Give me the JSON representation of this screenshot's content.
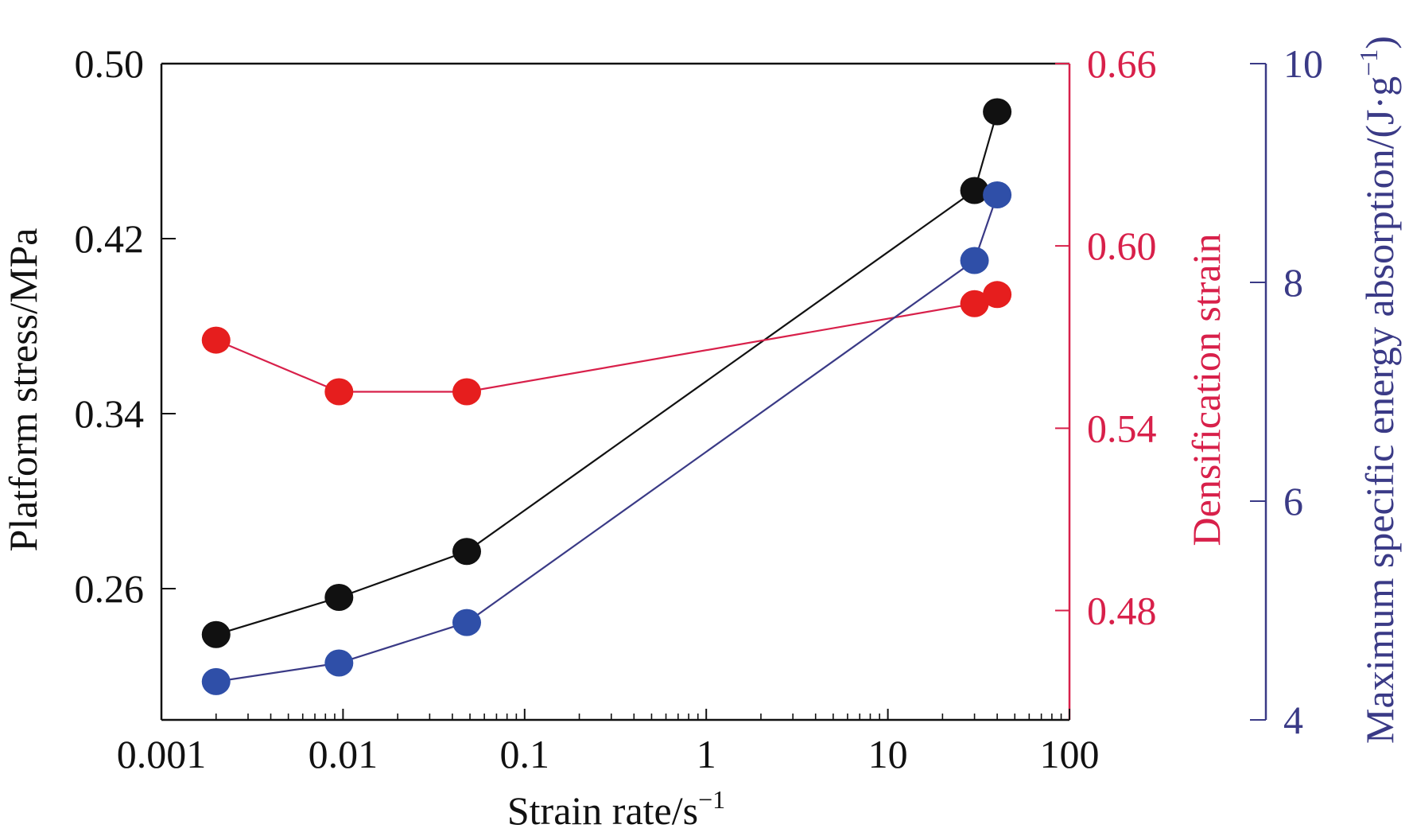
{
  "chart_data": {
    "type": "line",
    "x_scale": "log",
    "xlim": [
      0.001,
      100
    ],
    "x_ticks": [
      0.001,
      0.01,
      0.1,
      1,
      10,
      100
    ],
    "x_tick_labels": [
      "0.001",
      "0.01",
      "0.1",
      "1",
      "10",
      "100"
    ],
    "xlabel": "Strain rate/s",
    "xlabel_sup": "−1",
    "axes": {
      "left": {
        "label": "Platform stress/MPa",
        "lim": [
          0.2,
          0.5
        ],
        "ticks": [
          0.26,
          0.34,
          0.42,
          0.5
        ],
        "tick_labels": [
          "0.26",
          "0.34",
          "0.42",
          "0.50"
        ],
        "color": "#111111"
      },
      "right1": {
        "label": "Densification strain",
        "lim": [
          0.444,
          0.66
        ],
        "ticks": [
          0.48,
          0.54,
          0.6,
          0.66
        ],
        "tick_labels": [
          "0.48",
          "0.54",
          "0.60",
          "0.66"
        ],
        "color": "#d8204a"
      },
      "right2": {
        "label_main": "Maximum specific energy absorption/(J·g",
        "label_sup": "−1",
        "label_end": ")",
        "lim": [
          4,
          10
        ],
        "ticks": [
          4,
          6,
          8,
          10
        ],
        "tick_labels": [
          "4",
          "6",
          "8",
          "10"
        ],
        "color": "#3a3a86"
      }
    },
    "series": [
      {
        "axis": "left",
        "marker_color": "#111111",
        "line_color": "#111111",
        "x": [
          0.002,
          0.0095,
          0.048,
          30,
          40
        ],
        "y": [
          0.239,
          0.256,
          0.277,
          0.442,
          0.478
        ]
      },
      {
        "axis": "right1",
        "marker_color": "#e61e1e",
        "line_color": "#d8204a",
        "x": [
          0.002,
          0.0095,
          0.048,
          30,
          40
        ],
        "y": [
          0.569,
          0.552,
          0.552,
          0.581,
          0.584
        ]
      },
      {
        "axis": "right2",
        "marker_color": "#2f4fa8",
        "line_color": "#3a3a86",
        "x": [
          0.002,
          0.0095,
          0.048,
          30,
          40
        ],
        "y": [
          4.35,
          4.52,
          4.89,
          8.2,
          8.8
        ]
      }
    ],
    "grid": false
  }
}
